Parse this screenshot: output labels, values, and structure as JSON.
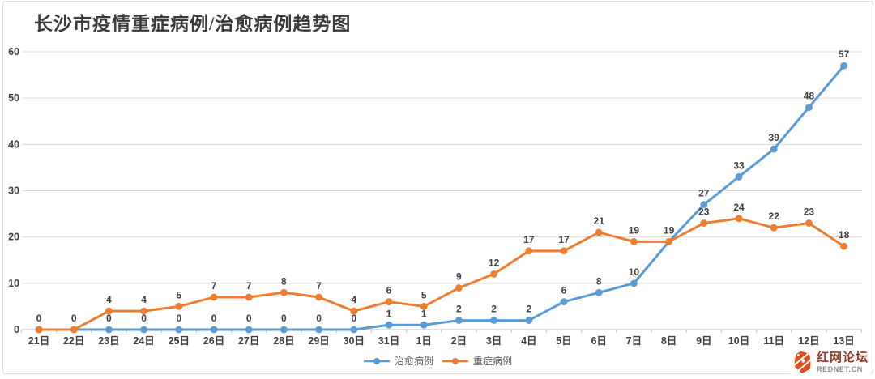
{
  "chart_data": {
    "type": "line",
    "title": "长沙市疫情重症病例/治愈病例趋势图",
    "categories": [
      "21日",
      "22日",
      "23日",
      "24日",
      "25日",
      "26日",
      "27日",
      "28日",
      "29日",
      "30日",
      "31日",
      "1日",
      "2日",
      "3日",
      "4日",
      "5日",
      "6日",
      "7日",
      "8日",
      "9日",
      "10日",
      "11日",
      "12日",
      "13日"
    ],
    "series": [
      {
        "name": "治愈病例",
        "id": "cured",
        "color": "#5B9BD5",
        "values": [
          0,
          0,
          0,
          0,
          0,
          0,
          0,
          0,
          0,
          0,
          1,
          1,
          2,
          2,
          2,
          6,
          8,
          10,
          19,
          27,
          33,
          39,
          48,
          57
        ],
        "labels": [
          "0",
          "0",
          "0",
          "0",
          "0",
          "0",
          "0",
          "0",
          "0",
          "0",
          "1",
          "1",
          "2",
          "2",
          "2",
          "6",
          "8",
          "10",
          "",
          "27",
          "33",
          "39",
          "48",
          "57"
        ]
      },
      {
        "name": "重症病例",
        "id": "severe",
        "color": "#ED7D31",
        "values": [
          0,
          0,
          4,
          4,
          5,
          7,
          7,
          8,
          7,
          4,
          6,
          5,
          9,
          12,
          17,
          17,
          21,
          19,
          19,
          23,
          24,
          22,
          23,
          18
        ],
        "labels": [
          "",
          "",
          "4",
          "4",
          "5",
          "7",
          "7",
          "8",
          "7",
          "4",
          "6",
          "5",
          "9",
          "12",
          "17",
          "17",
          "21",
          "19",
          "19",
          "23",
          "24",
          "22",
          "23",
          "18"
        ]
      }
    ],
    "ylim": [
      0,
      60
    ],
    "yticks": [
      0,
      10,
      20,
      30,
      40,
      50,
      60
    ],
    "grid": true,
    "legend_position": "bottom",
    "label_color": "#3f3f3f",
    "axis_text_color": "#3f3f3f",
    "gridline_color": "#d9d9d9",
    "axis_line_color": "#bfbfbf"
  },
  "watermark": {
    "site_name": "红网论坛",
    "site_url": "REDNET.CN",
    "logo_color": "#e14f1e"
  }
}
